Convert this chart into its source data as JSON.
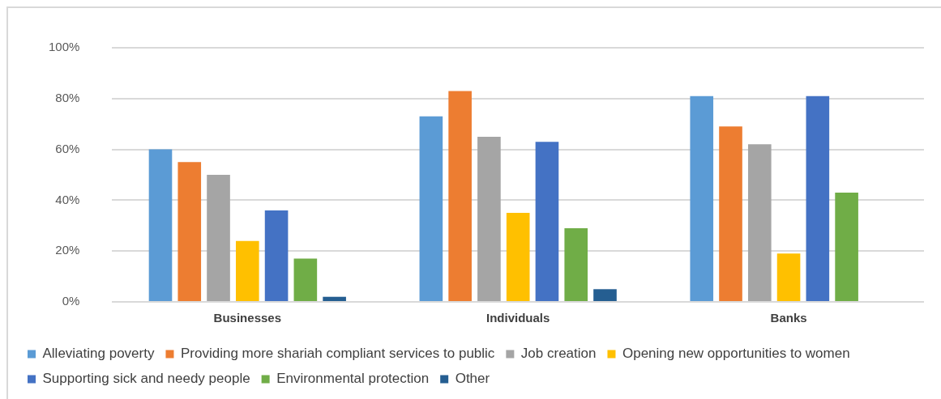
{
  "chart_data": {
    "type": "bar",
    "categories": [
      "Businesses",
      "Individuals",
      "Banks"
    ],
    "series": [
      {
        "name": "Alleviating poverty",
        "color": "#5b9bd5",
        "values": [
          60,
          73,
          81
        ]
      },
      {
        "name": "Providing more shariah compliant services to public",
        "color": "#ed7d31",
        "values": [
          55,
          83,
          69
        ]
      },
      {
        "name": "Job creation",
        "color": "#a5a5a5",
        "values": [
          50,
          65,
          62
        ]
      },
      {
        "name": "Opening new opportunities to women",
        "color": "#ffc000",
        "values": [
          24,
          35,
          19
        ]
      },
      {
        "name": "Supporting sick and needy people",
        "color": "#4472c4",
        "values": [
          36,
          63,
          81
        ]
      },
      {
        "name": "Environmental protection",
        "color": "#70ad47",
        "values": [
          17,
          29,
          43
        ]
      },
      {
        "name": "Other",
        "color": "#255e91",
        "values": [
          2,
          5,
          null
        ]
      }
    ],
    "ylim": [
      0,
      100
    ],
    "yticks": [
      {
        "value": 0,
        "label": "0%"
      },
      {
        "value": 20,
        "label": "20%"
      },
      {
        "value": 40,
        "label": "40%"
      },
      {
        "value": 60,
        "label": "60%"
      },
      {
        "value": 80,
        "label": "80%"
      },
      {
        "value": 100,
        "label": "100%"
      }
    ],
    "grid": "y",
    "legend": "bottom"
  }
}
